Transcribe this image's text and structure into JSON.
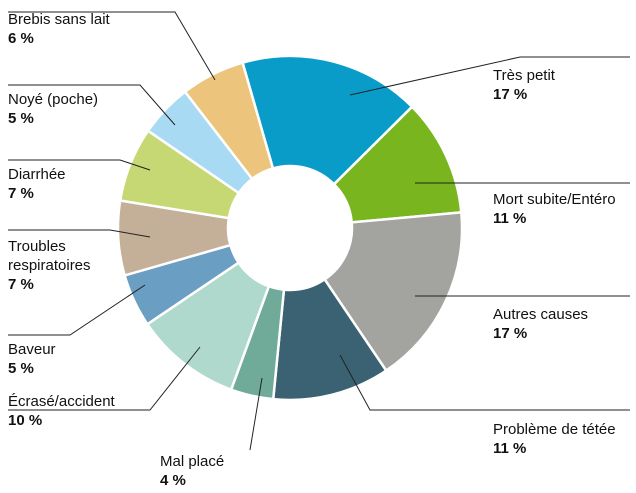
{
  "chart_data": {
    "type": "pie",
    "categories": [
      "Très petit",
      "Mort subite/Entéro",
      "Autres causes",
      "Problème de tétée",
      "Mal placé",
      "Écrasé/accident",
      "Baveur",
      "Troubles respiratoires",
      "Diarrhée",
      "Noyé (poche)",
      "Brebis sans lait"
    ],
    "values": [
      17,
      11,
      17,
      11,
      4,
      10,
      5,
      7,
      7,
      5,
      6
    ],
    "value_labels": [
      "17 %",
      "11 %",
      "17 %",
      "11 %",
      "4 %",
      "10 %",
      "5 %",
      "7 %",
      "7 %",
      "5 %",
      "6 %"
    ],
    "colors": [
      "#0a9cc9",
      "#79b51f",
      "#a3a3a0",
      "#3a6272",
      "#6fab98",
      "#afd9cc",
      "#6b9ec3",
      "#c4af98",
      "#c6d873",
      "#a8daf3",
      "#ecc47c"
    ]
  }
}
